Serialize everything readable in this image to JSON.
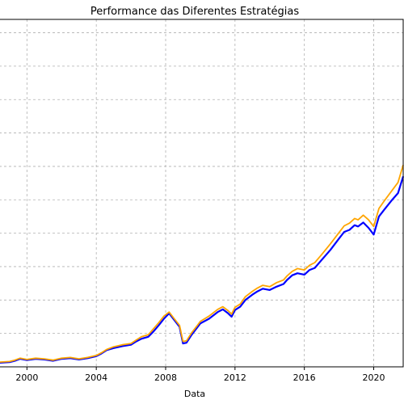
{
  "chart_data": {
    "type": "line",
    "title": "Performance das Diferentes Estratégias",
    "xlabel": "Data",
    "ylabel": "",
    "grid": true,
    "xlim": [
      1998.4,
      2021.7
    ],
    "ylim": [
      0,
      5.2
    ],
    "x_ticks": [
      2000,
      2004,
      2008,
      2012,
      2016,
      2020
    ],
    "x_tick_labels": [
      "2000",
      "2004",
      "2008",
      "2012",
      "2016",
      "2020"
    ],
    "series": [
      {
        "color": "#0000ff",
        "x": [
          1998.4,
          1999.0,
          1999.3,
          1999.6,
          2000.0,
          2000.5,
          2001.0,
          2001.5,
          2002.0,
          2002.5,
          2003.0,
          2003.5,
          2004.0,
          2004.3,
          2004.6,
          2005.0,
          2005.5,
          2006.0,
          2006.3,
          2006.6,
          2007.0,
          2007.3,
          2007.6,
          2007.9,
          2008.2,
          2008.5,
          2008.8,
          2009.0,
          2009.2,
          2009.5,
          2009.8,
          2010.0,
          2010.5,
          2011.0,
          2011.3,
          2011.6,
          2011.8,
          2012.0,
          2012.3,
          2012.6,
          2013.0,
          2013.3,
          2013.6,
          2014.0,
          2014.4,
          2014.8,
          2015.0,
          2015.3,
          2015.6,
          2016.0,
          2016.3,
          2016.6,
          2017.0,
          2017.5,
          2018.0,
          2018.3,
          2018.6,
          2018.9,
          2019.1,
          2019.4,
          2019.7,
          2020.0,
          2020.3,
          2020.6,
          2021.0,
          2021.4,
          2021.7
        ],
        "values": [
          0.06,
          0.07,
          0.09,
          0.12,
          0.1,
          0.12,
          0.11,
          0.09,
          0.12,
          0.13,
          0.11,
          0.13,
          0.16,
          0.2,
          0.25,
          0.28,
          0.31,
          0.33,
          0.38,
          0.42,
          0.45,
          0.53,
          0.62,
          0.72,
          0.8,
          0.7,
          0.6,
          0.35,
          0.36,
          0.48,
          0.58,
          0.65,
          0.72,
          0.82,
          0.86,
          0.8,
          0.75,
          0.85,
          0.9,
          1.0,
          1.08,
          1.13,
          1.17,
          1.15,
          1.2,
          1.24,
          1.3,
          1.37,
          1.4,
          1.38,
          1.45,
          1.48,
          1.6,
          1.75,
          1.92,
          2.02,
          2.05,
          2.12,
          2.1,
          2.16,
          2.08,
          1.98,
          2.25,
          2.35,
          2.48,
          2.6,
          2.85
        ]
      },
      {
        "color": "#ffa500",
        "x": [
          1998.4,
          1999.0,
          1999.3,
          1999.6,
          2000.0,
          2000.5,
          2001.0,
          2001.5,
          2002.0,
          2002.5,
          2003.0,
          2003.5,
          2004.0,
          2004.3,
          2004.6,
          2005.0,
          2005.5,
          2006.0,
          2006.3,
          2006.6,
          2007.0,
          2007.3,
          2007.6,
          2007.9,
          2008.2,
          2008.5,
          2008.8,
          2009.0,
          2009.2,
          2009.5,
          2009.8,
          2010.0,
          2010.5,
          2011.0,
          2011.3,
          2011.6,
          2011.8,
          2012.0,
          2012.3,
          2012.6,
          2013.0,
          2013.3,
          2013.6,
          2014.0,
          2014.4,
          2014.8,
          2015.0,
          2015.3,
          2015.6,
          2016.0,
          2016.3,
          2016.6,
          2017.0,
          2017.5,
          2018.0,
          2018.3,
          2018.6,
          2018.9,
          2019.1,
          2019.4,
          2019.7,
          2020.0,
          2020.3,
          2020.6,
          2021.0,
          2021.4,
          2021.7
        ],
        "values": [
          0.07,
          0.08,
          0.1,
          0.13,
          0.11,
          0.13,
          0.12,
          0.1,
          0.13,
          0.14,
          0.12,
          0.14,
          0.17,
          0.21,
          0.26,
          0.3,
          0.33,
          0.35,
          0.4,
          0.45,
          0.48,
          0.57,
          0.66,
          0.76,
          0.82,
          0.72,
          0.62,
          0.38,
          0.39,
          0.51,
          0.61,
          0.68,
          0.76,
          0.86,
          0.9,
          0.84,
          0.79,
          0.89,
          0.94,
          1.05,
          1.13,
          1.18,
          1.22,
          1.2,
          1.26,
          1.3,
          1.36,
          1.43,
          1.47,
          1.45,
          1.52,
          1.56,
          1.68,
          1.84,
          2.01,
          2.11,
          2.15,
          2.22,
          2.2,
          2.27,
          2.2,
          2.1,
          2.37,
          2.48,
          2.62,
          2.76,
          3.02
        ]
      }
    ]
  }
}
